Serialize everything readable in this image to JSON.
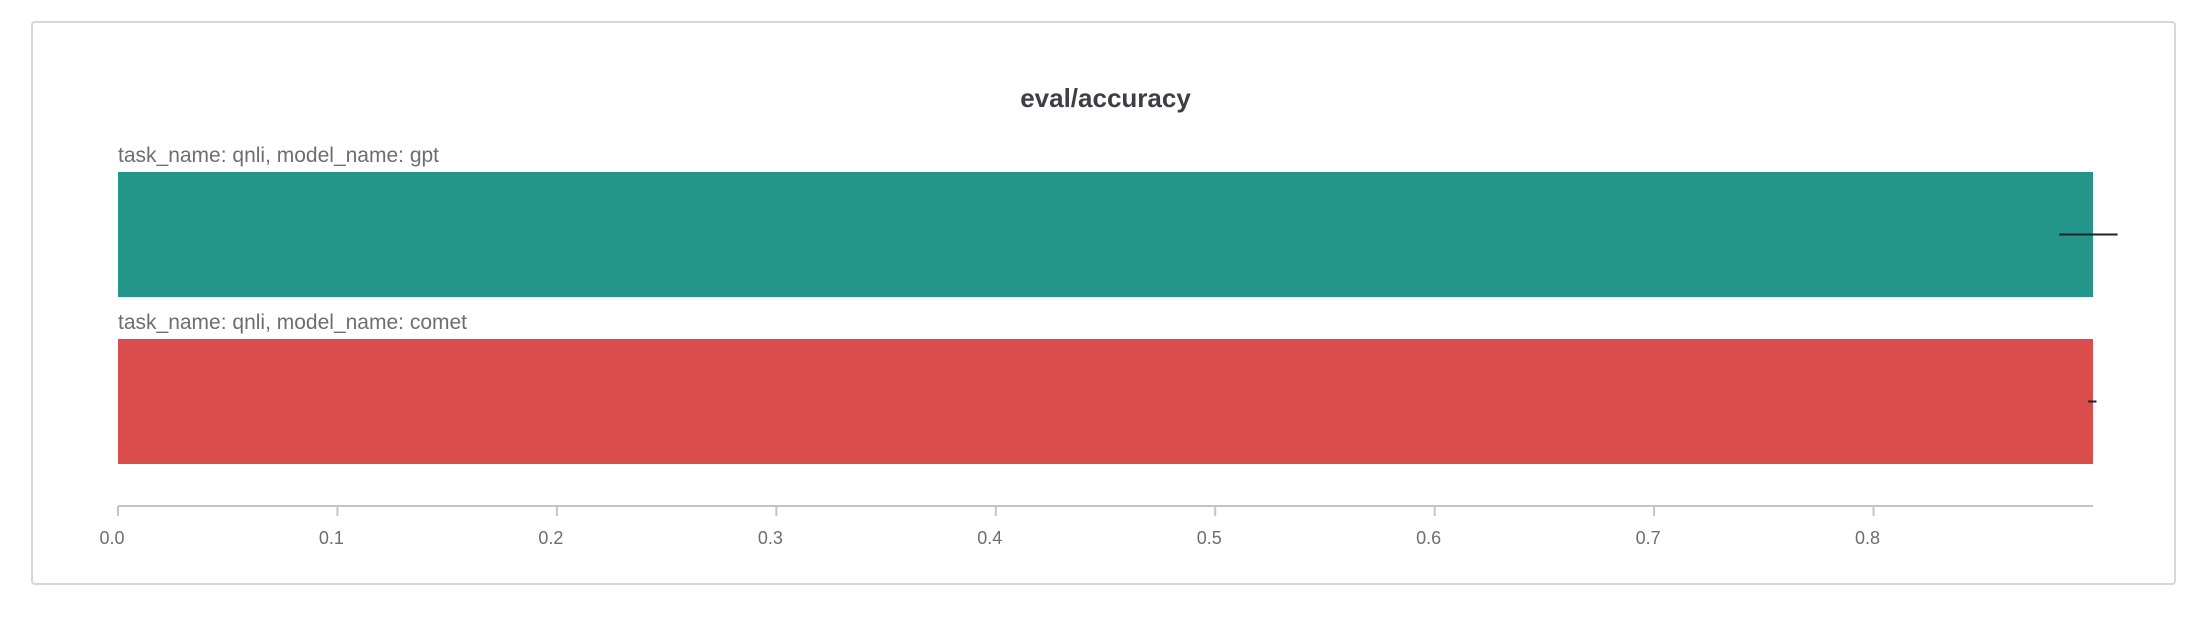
{
  "chart_data": {
    "type": "bar",
    "orientation": "horizontal",
    "title": "eval/accuracy",
    "xlabel": "",
    "ylabel": "",
    "xlim": [
      0,
      0.9
    ],
    "xticks": [
      0.0,
      0.1,
      0.2,
      0.3,
      0.4,
      0.5,
      0.6,
      0.7,
      0.8
    ],
    "xtick_labels": [
      "0.0",
      "0.1",
      "0.2",
      "0.3",
      "0.4",
      "0.5",
      "0.6",
      "0.7",
      "0.8"
    ],
    "grid": false,
    "series": [
      {
        "label": "task_name: qnli, model_name: gpt",
        "value": 0.9,
        "error": 0.007,
        "color": "#23958a"
      },
      {
        "label": "task_name: qnli, model_name: comet",
        "value": 0.9,
        "error": 0.001,
        "color": "#db4c4c"
      }
    ]
  }
}
